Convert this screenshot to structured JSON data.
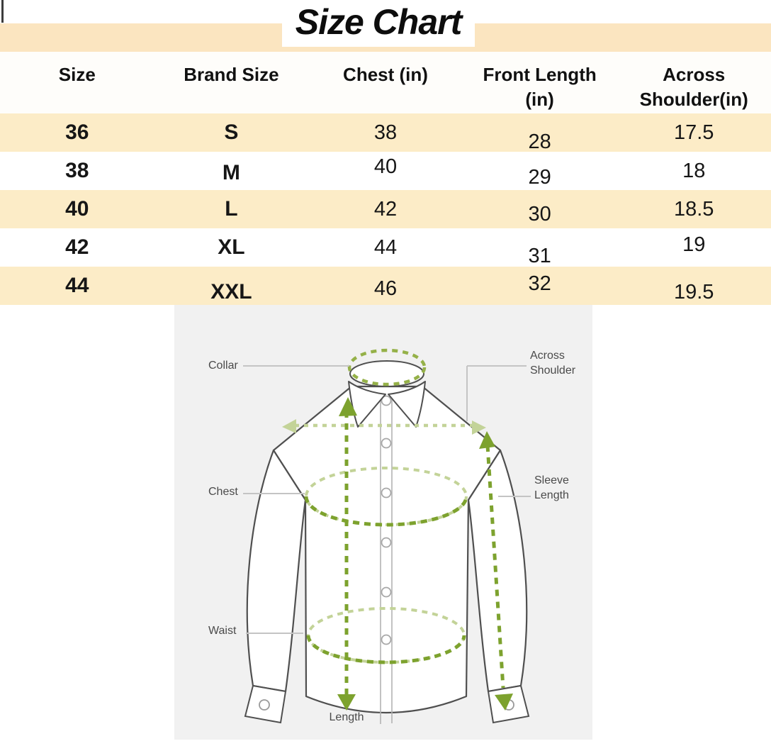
{
  "title": {
    "text": "Size Chart"
  },
  "colors": {
    "band": "#fbe5c0",
    "row_alt": "#fcecc7",
    "row_white": "#ffffff",
    "diagram_bg": "#f1f1f1",
    "accent_green_dark": "#7da22e",
    "accent_green_light": "#c3d398",
    "shirt_outline": "#4f4f4f"
  },
  "chart_data": {
    "type": "table",
    "title": "Size Chart",
    "columns": [
      "Size",
      "Brand Size",
      "Chest (in)",
      "Front Length (in)",
      "Across Shoulder(in)"
    ],
    "rows": [
      [
        "36",
        "S",
        "38",
        "28",
        "17.5"
      ],
      [
        "38",
        "M",
        "40",
        "29",
        "18"
      ],
      [
        "40",
        "L",
        "42",
        "30",
        "18.5"
      ],
      [
        "42",
        "XL",
        "44",
        "31",
        "19"
      ],
      [
        "44",
        "XXL",
        "46",
        "32",
        "19.5"
      ]
    ]
  },
  "diagram": {
    "labels": {
      "collar": "Collar",
      "across_shoulder": "Across Shoulder",
      "chest": "Chest",
      "sleeve_length": "Sleeve Length",
      "waist": "Waist",
      "length": "Length"
    }
  }
}
